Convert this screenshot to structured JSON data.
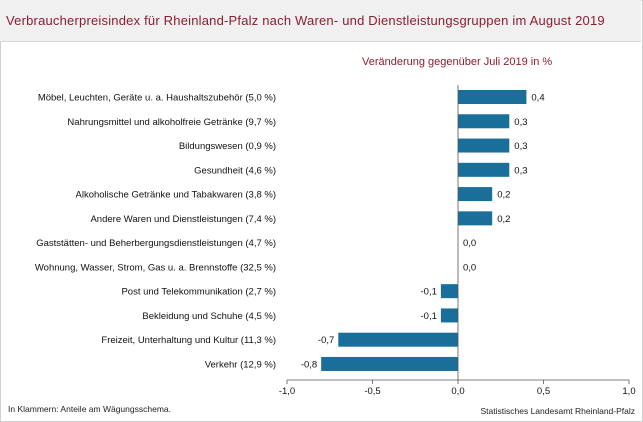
{
  "header": {
    "title": "Verbraucherpreisindex für Rheinland-Pfalz nach Waren- und Dienstleistungsgruppen im August 2019"
  },
  "chart_data": {
    "type": "bar",
    "orientation": "horizontal",
    "title": "Verbraucherpreisindex für Rheinland-Pfalz nach Waren- und Dienstleistungsgruppen im August 2019",
    "subtitle": "Veränderung gegenüber Juli 2019 in %",
    "categories": [
      "Möbel, Leuchten, Geräte u. a. Haushaltszubehör (5,0 %)",
      "Nahrungsmittel und alkoholfreie Getränke (9,7 %)",
      "Bildungswesen (0,9 %)",
      "Gesundheit (4,6 %)",
      "Alkoholische Getränke und Tabakwaren (3,8 %)",
      "Andere Waren und Dienstleistungen (7,4 %)",
      "Gaststätten- und Beherbergungsdienstleistungen (4,7 %)",
      "Wohnung, Wasser, Strom, Gas u. a. Brennstoffe (32,5 %)",
      "Post und Telekommunikation (2,7 %)",
      "Bekleidung und Schuhe (4,5 %)",
      "Freizeit, Unterhaltung und Kultur (11,3 %)",
      "Verkehr (12,9 %)"
    ],
    "values": [
      0.4,
      0.3,
      0.3,
      0.3,
      0.2,
      0.2,
      0.0,
      0.0,
      -0.1,
      -0.1,
      -0.7,
      -0.8
    ],
    "value_labels": [
      "0,4",
      "0,3",
      "0,3",
      "0,3",
      "0,2",
      "0,2",
      "0,0",
      "0,0",
      "-0,1",
      "-0,1",
      "-0,7",
      "-0,8"
    ],
    "xlim": [
      -1.0,
      1.0
    ],
    "xticks": [
      -1.0,
      -0.5,
      0.0,
      0.5,
      1.0
    ],
    "xtick_labels": [
      "-1,0",
      "-0,5",
      "0,0",
      "0,5",
      "1,0"
    ],
    "bar_color": "#1a6e9a",
    "grid": false
  },
  "footer": {
    "note": "In Klammern: Anteile am Wägungsschema.",
    "source": "Statistisches Landesamt Rheinland-Pfalz"
  },
  "colors": {
    "title": "#8b1e2f",
    "bar": "#1a6e9a",
    "header_bg": "#f0f0f0"
  }
}
